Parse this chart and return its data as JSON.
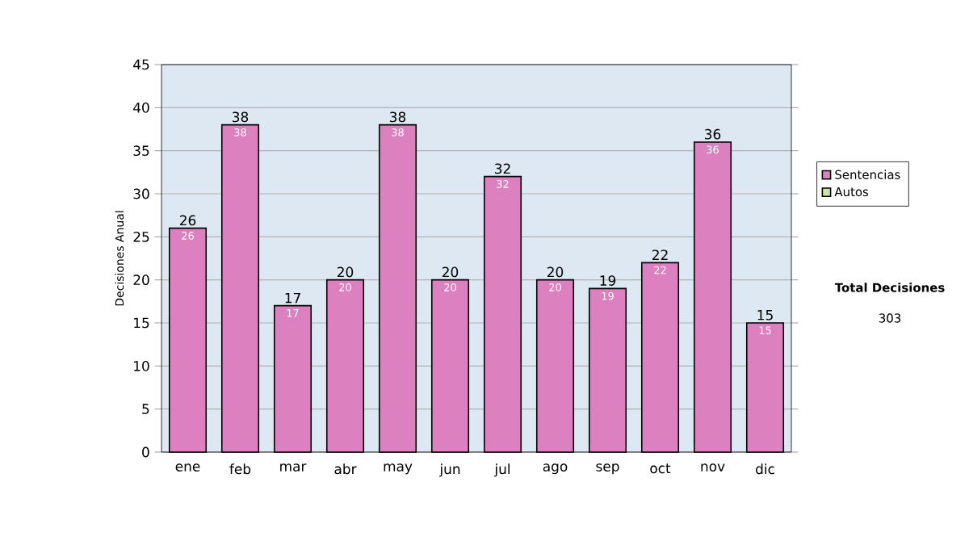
{
  "chart_data": {
    "type": "bar",
    "ylabel": "Decisiones Anual",
    "categories": [
      "ene",
      "feb",
      "mar",
      "abr",
      "may",
      "jun",
      "jul",
      "ago",
      "sep",
      "oct",
      "nov",
      "dic"
    ],
    "series": [
      {
        "name": "Sentencias",
        "color": "#dd80c0",
        "values": [
          26,
          38,
          17,
          20,
          38,
          20,
          32,
          20,
          19,
          22,
          36,
          15
        ],
        "value_labels": [
          "26",
          "38",
          "17",
          "20",
          "38",
          "20",
          "32",
          "20",
          "19",
          "22",
          "36",
          "15"
        ]
      },
      {
        "name": "Autos",
        "color": "#cce8a0",
        "values": [
          0,
          0,
          0,
          0,
          0,
          0,
          0,
          0,
          0,
          0,
          0,
          0
        ]
      }
    ],
    "stacked": true,
    "totals": [
      "26",
      "38",
      "17",
      "20",
      "38",
      "20",
      "32",
      "20",
      "19",
      "22",
      "36",
      "15"
    ],
    "ylim": [
      0,
      45
    ],
    "yticks": [
      0,
      5,
      10,
      15,
      20,
      25,
      30,
      35,
      40,
      45
    ],
    "grid": "y",
    "legend": "right",
    "annotations": [
      "Total Decisiones",
      "303"
    ]
  }
}
